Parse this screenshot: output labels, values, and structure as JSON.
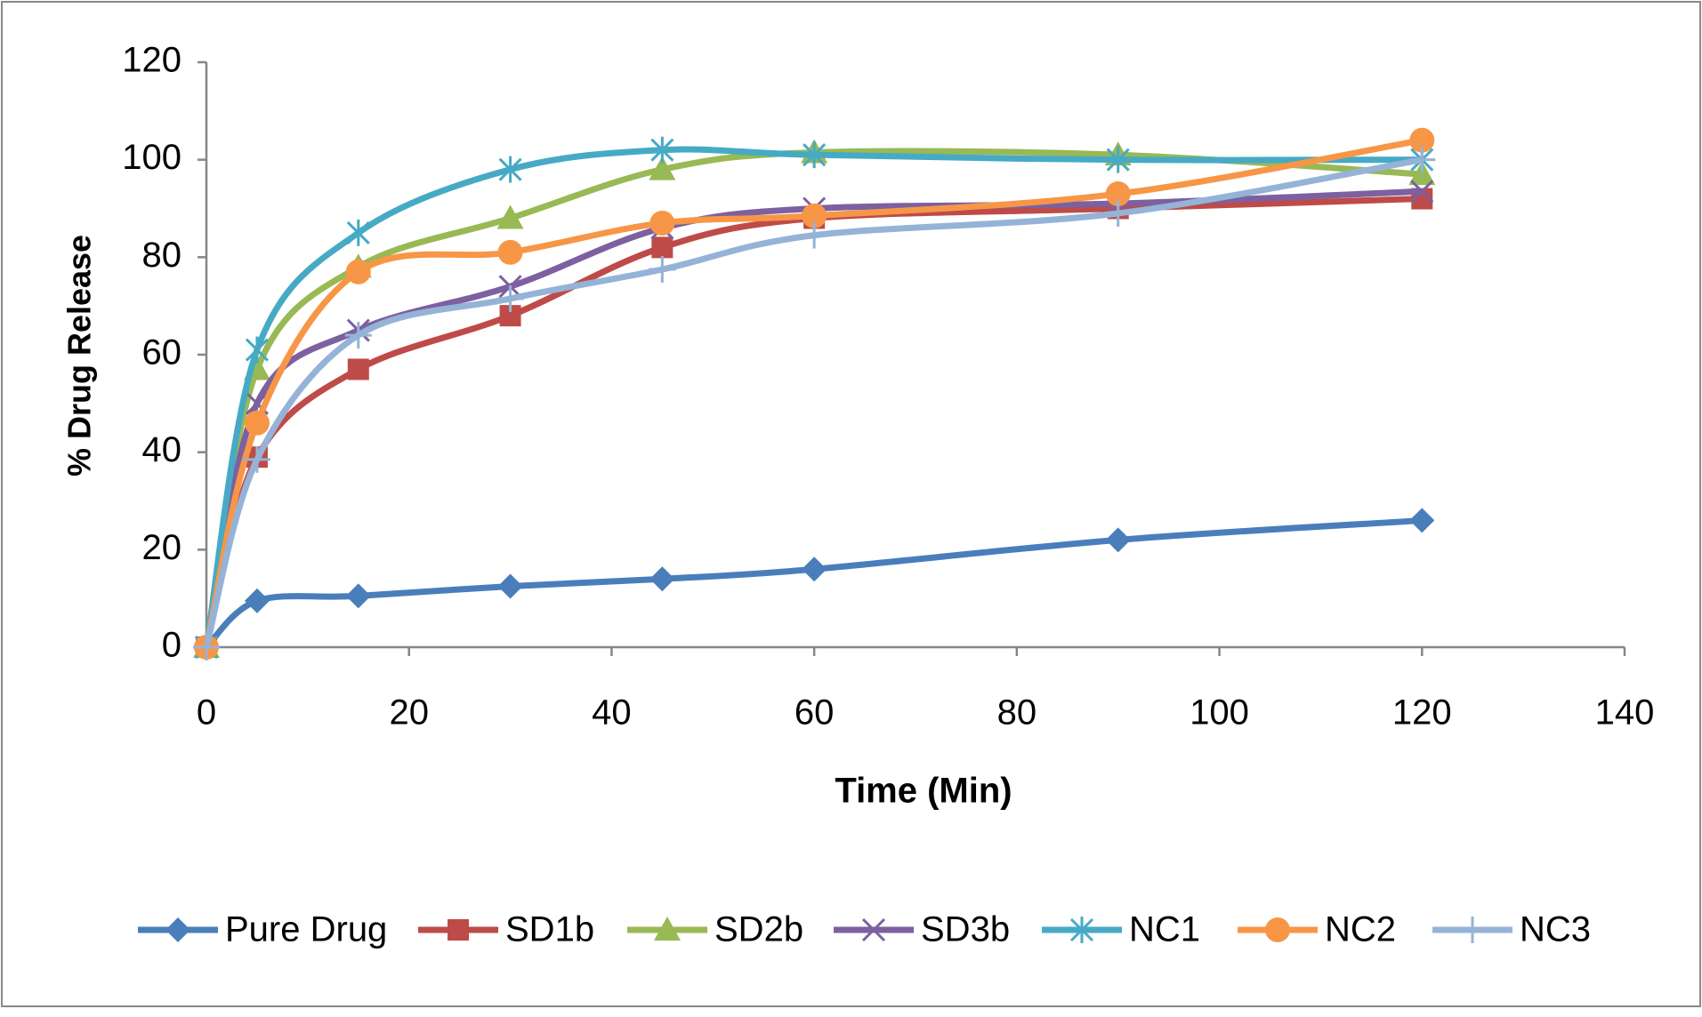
{
  "chart_data": {
    "type": "line",
    "x_label": "Time (Min)",
    "y_label": "% Drug Release",
    "x": [
      0,
      5,
      15,
      30,
      45,
      60,
      90,
      120
    ],
    "series": [
      {
        "name": "Pure Drug",
        "color": "#4a7ebb",
        "marker": "diamond",
        "values": [
          0,
          9.5,
          10.5,
          12.5,
          14,
          16,
          22,
          26
        ]
      },
      {
        "name": "SD1b",
        "color": "#be4b48",
        "marker": "square",
        "values": [
          0,
          39,
          57,
          68,
          82,
          88,
          90,
          92
        ]
      },
      {
        "name": "SD2b",
        "color": "#98b954",
        "marker": "triangle",
        "values": [
          0,
          57,
          78,
          88,
          98,
          101.5,
          101,
          97
        ]
      },
      {
        "name": "SD3b",
        "color": "#7d60a0",
        "marker": "x",
        "values": [
          0,
          50,
          65,
          74,
          86,
          90,
          91,
          93.5
        ]
      },
      {
        "name": "NC1",
        "color": "#46aac5",
        "marker": "star",
        "values": [
          0,
          61,
          85,
          98,
          102,
          101,
          100,
          100
        ]
      },
      {
        "name": "NC2",
        "color": "#f79646",
        "marker": "circle",
        "values": [
          0,
          46,
          77,
          81,
          87,
          88.5,
          93,
          104
        ]
      },
      {
        "name": "NC3",
        "color": "#95b3d7",
        "marker": "plus",
        "values": [
          0,
          38.5,
          64,
          71.5,
          77.5,
          84.5,
          89,
          100
        ]
      }
    ],
    "xlim": [
      0,
      140
    ],
    "xticks": [
      0,
      20,
      40,
      60,
      80,
      100,
      120,
      140
    ],
    "ylim": [
      0,
      120
    ],
    "yticks": [
      0,
      20,
      40,
      60,
      80,
      100,
      120
    ],
    "grid": false,
    "legend": "bottom"
  }
}
